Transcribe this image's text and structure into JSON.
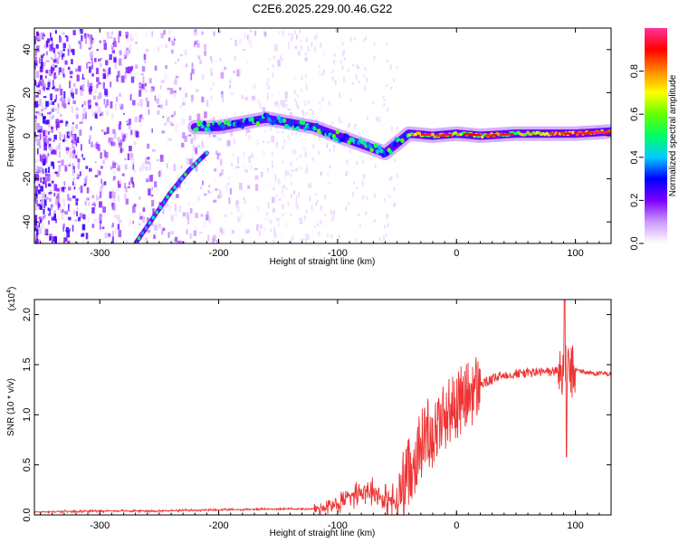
{
  "title": "C2E6.2025.229.00.46.G22",
  "chart_data": [
    {
      "type": "heatmap",
      "xlabel": "Height of straight line (km)",
      "ylabel": "Frequency (Hz)",
      "xlim": [
        -355,
        130
      ],
      "ylim": [
        -50,
        50
      ],
      "xticks": [
        -300,
        -200,
        -100,
        0,
        100
      ],
      "yticks": [
        -40,
        -20,
        0,
        20,
        40
      ],
      "colorbar": {
        "label": "Normalized spectral amplitude",
        "range": [
          0,
          1
        ],
        "ticks": [
          "0.0",
          "0.2",
          "0.4",
          "0.6",
          "0.8"
        ],
        "colors": [
          "#ffffff",
          "#cc99ff",
          "#7a00ff",
          "#0000ff",
          "#00ccff",
          "#00ff66",
          "#66ff00",
          "#ffff00",
          "#ff8800",
          "#ff0000",
          "#ff3399"
        ]
      },
      "ridge": {
        "x": [
          -220,
          -200,
          -180,
          -160,
          -140,
          -120,
          -100,
          -80,
          -60,
          -40,
          -20,
          0,
          20,
          50,
          80,
          100,
          130
        ],
        "frequency": [
          4,
          4,
          6,
          8,
          6,
          4,
          0,
          -4,
          -8,
          1,
          0,
          1,
          0,
          1,
          1,
          1,
          2
        ]
      },
      "branch": {
        "x": [
          -270,
          -255,
          -240,
          -225,
          -210
        ],
        "frequency": [
          -50,
          -38,
          -26,
          -16,
          -8
        ]
      }
    },
    {
      "type": "line",
      "xlabel": "Height of straight line (km)",
      "ylabel": "SNR (10 * v/v)",
      "multiplier": "(x10",
      "multiplier_exp": "4",
      "multiplier_close": ")",
      "xlim": [
        -355,
        130
      ],
      "ylim": [
        0,
        2.15
      ],
      "xticks": [
        -300,
        -200,
        -100,
        0,
        100
      ],
      "yticks": [
        "0.0",
        "0.5",
        "1.0",
        "1.5",
        "2.0"
      ],
      "series": [
        {
          "color": "#ee3333",
          "x": [
            -355,
            -300,
            -250,
            -200,
            -150,
            -120,
            -100,
            -90,
            -80,
            -70,
            -60,
            -50,
            -45,
            -40,
            -35,
            -30,
            -25,
            -20,
            -15,
            -10,
            -5,
            0,
            5,
            10,
            20,
            30,
            40,
            60,
            80,
            88,
            92,
            95,
            100,
            110,
            120,
            130
          ],
          "y": [
            0.03,
            0.04,
            0.04,
            0.05,
            0.06,
            0.06,
            0.1,
            0.2,
            0.25,
            0.25,
            0.15,
            0.12,
            0.3,
            0.45,
            0.55,
            0.7,
            0.85,
            0.8,
            0.9,
            1.0,
            1.05,
            1.1,
            1.15,
            1.2,
            1.3,
            1.35,
            1.4,
            1.42,
            1.43,
            1.45,
            1.48,
            1.4,
            1.45,
            1.42,
            1.41,
            1.41
          ]
        }
      ]
    }
  ]
}
